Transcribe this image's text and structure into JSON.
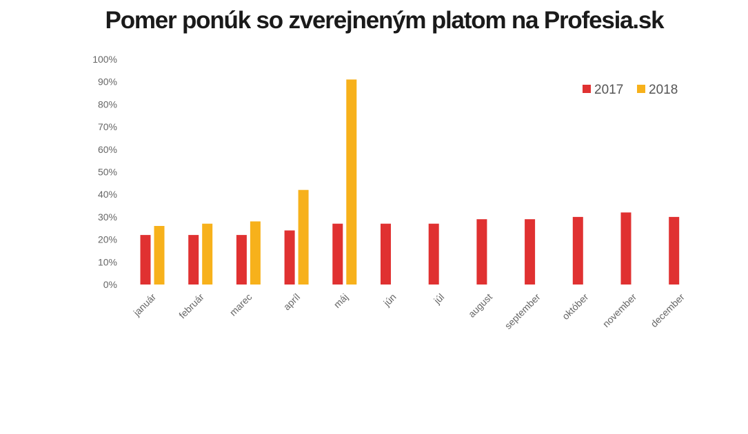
{
  "chart_data": {
    "type": "bar",
    "title": "Pomer ponúk so zverejneným platom na Profesia.sk",
    "xlabel": "",
    "ylabel": "",
    "ylim": [
      0,
      100
    ],
    "yticks": [
      "0%",
      "10%",
      "20%",
      "30%",
      "40%",
      "50%",
      "60%",
      "70%",
      "80%",
      "90%",
      "100%"
    ],
    "categories": [
      "január",
      "február",
      "marec",
      "apríl",
      "máj",
      "jún",
      "júl",
      "august",
      "september",
      "október",
      "november",
      "december"
    ],
    "series": [
      {
        "name": "2017",
        "color": "#e03131",
        "values": [
          22,
          22,
          22,
          24,
          27,
          27,
          27,
          29,
          29,
          30,
          32,
          30
        ]
      },
      {
        "name": "2018",
        "color": "#f7b11b",
        "values": [
          26,
          27,
          28,
          42,
          91,
          null,
          null,
          null,
          null,
          null,
          null,
          null
        ]
      }
    ],
    "legend_position": "top-right",
    "grid": false
  }
}
